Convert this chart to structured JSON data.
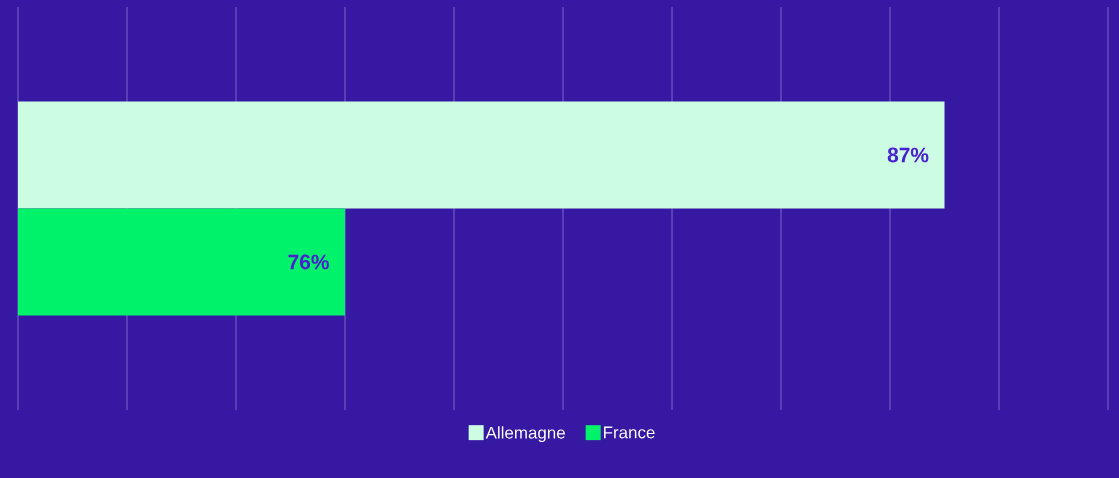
{
  "chart_data": {
    "type": "bar",
    "orientation": "horizontal",
    "categories": [
      null
    ],
    "series": [
      {
        "name": "Allemagne",
        "color": "#ccfde2",
        "values": [
          87
        ],
        "value_labels": [
          "87%"
        ]
      },
      {
        "name": "France",
        "color": "#00f26a",
        "values": [
          76
        ],
        "value_labels": [
          "76%"
        ]
      }
    ],
    "xlim": [
      70,
      90
    ],
    "xticks": [
      {
        "value": 70,
        "label": null
      },
      {
        "value": 72,
        "label": null
      },
      {
        "value": 74,
        "label": null
      },
      {
        "value": 76,
        "label": null
      },
      {
        "value": 78,
        "label": null
      },
      {
        "value": 80,
        "label": null
      },
      {
        "value": 82,
        "label": null
      },
      {
        "value": 84,
        "label": null
      },
      {
        "value": 86,
        "label": null
      },
      {
        "value": 88,
        "label": null
      },
      {
        "value": 90,
        "label": null
      }
    ],
    "grid": "x",
    "legend": "bottom"
  }
}
